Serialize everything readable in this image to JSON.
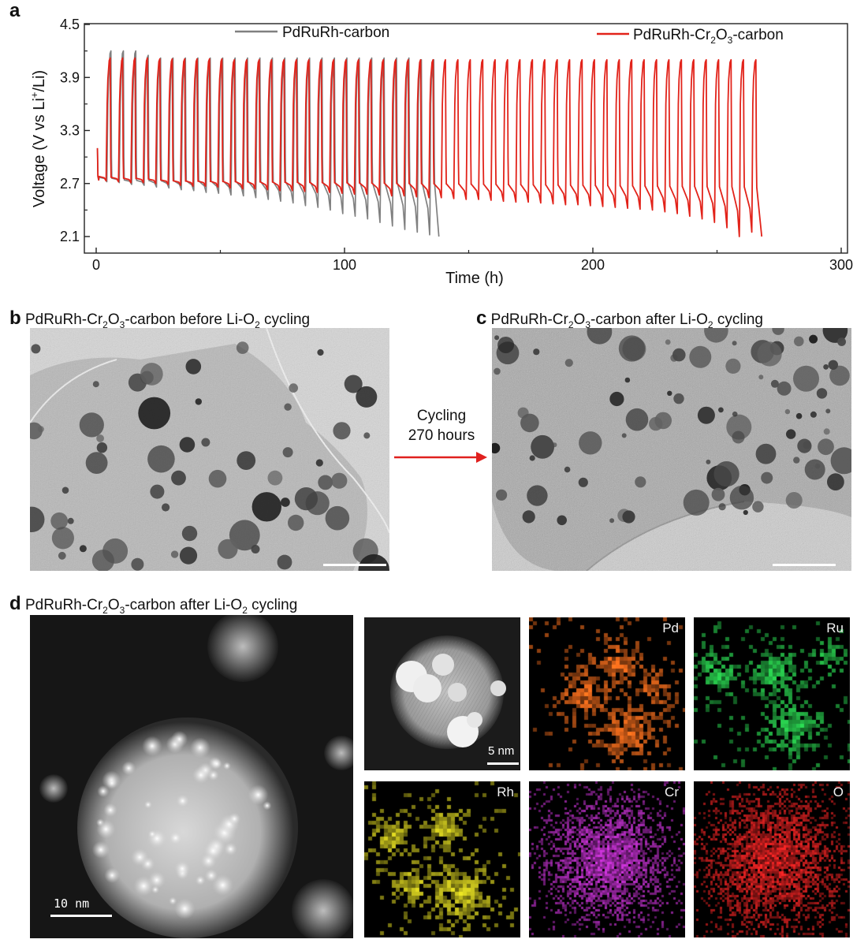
{
  "panels": {
    "a": {
      "letter": "a"
    },
    "b": {
      "letter": "b",
      "title_prefix": "PdRuRh-Cr",
      "s1": "2",
      "mid": "O",
      "s2": "3",
      "title_suffix": "-carbon before Li-O",
      "s3": "2",
      "title_end": " cycling"
    },
    "c": {
      "letter": "c",
      "title_prefix": "PdRuRh-Cr",
      "s1": "2",
      "mid": "O",
      "s2": "3",
      "title_suffix": "-carbon after Li-O",
      "s3": "2",
      "title_end": " cycling"
    },
    "d": {
      "letter": "d",
      "title_prefix": "PdRuRh-Cr",
      "s1": "2",
      "mid": "O",
      "s2": "3",
      "title_suffix": "-carbon after Li-O",
      "s3": "2",
      "title_end": " cycling"
    }
  },
  "arrow": {
    "line1": "Cycling",
    "line2": "270 hours",
    "color": "#e0201e"
  },
  "maps": {
    "haadf_scale": "5 nm",
    "large_scale": "10 nm",
    "elements": [
      {
        "label": "Pd",
        "color": "#e0651b"
      },
      {
        "label": "Ru",
        "color": "#27c24a"
      },
      {
        "label": "Rh",
        "color": "#c8c21e"
      },
      {
        "label": "Cr",
        "color": "#b62ec2"
      },
      {
        "label": "O",
        "color": "#d42020"
      }
    ]
  },
  "chart_data": {
    "type": "line",
    "xlabel": "Time (h)",
    "ylabel_main": "Voltage (V vs Li",
    "ylabel_sup": "+",
    "ylabel_end": "/Li)",
    "xlim": [
      0,
      300
    ],
    "ylim": [
      1.95,
      4.5
    ],
    "xticks": [
      0,
      100,
      200,
      300
    ],
    "yticks": [
      2.1,
      2.7,
      3.3,
      3.9,
      4.5
    ],
    "xtick_labels": [
      "0",
      "100",
      "200",
      "300"
    ],
    "ytick_labels": [
      "2.1",
      "2.7",
      "3.3",
      "3.9",
      "4.5"
    ],
    "grid": false,
    "legend": [
      {
        "name": "PdRuRh-carbon",
        "color": "#808080",
        "label_plain": "PdRuRh-carbon"
      },
      {
        "name": "PdRuRh-Cr2O3-carbon",
        "color": "#e2231a",
        "label_a": "PdRuRh-Cr",
        "sub1": "2",
        "label_b": "O",
        "sub2": "3",
        "label_c": "-carbon"
      }
    ],
    "series": [
      {
        "name": "PdRuRh-carbon",
        "color": "#808080",
        "cycle_period_h": 5,
        "end_h": 138,
        "discharge_end_V": [
          2.72,
          2.71,
          2.69,
          2.68,
          2.66,
          2.65,
          2.63,
          2.62,
          2.6,
          2.59,
          2.57,
          2.56,
          2.54,
          2.52,
          2.5,
          2.48,
          2.45,
          2.43,
          2.4,
          2.36,
          2.33,
          2.3,
          2.26,
          2.22,
          2.18,
          2.15,
          2.12,
          2.1
        ],
        "charge_top_V": [
          4.2,
          4.2,
          4.2,
          4.15,
          4.12,
          4.12,
          4.12,
          4.12,
          4.12,
          4.12,
          4.12,
          4.12,
          4.12,
          4.12,
          4.12,
          4.12,
          4.12,
          4.12,
          4.12,
          4.12,
          4.12,
          4.12,
          4.12,
          4.12,
          4.12,
          4.1,
          4.1
        ]
      },
      {
        "name": "PdRuRh-Cr2O3-carbon",
        "color": "#e2231a",
        "cycle_period_h": 5,
        "end_h": 268,
        "discharge_end_V": [
          2.73,
          2.72,
          2.71,
          2.71,
          2.7,
          2.69,
          2.68,
          2.67,
          2.67,
          2.66,
          2.65,
          2.64,
          2.64,
          2.63,
          2.62,
          2.62,
          2.61,
          2.6,
          2.6,
          2.59,
          2.58,
          2.58,
          2.57,
          2.56,
          2.56,
          2.55,
          2.54,
          2.54,
          2.53,
          2.52,
          2.52,
          2.51,
          2.5,
          2.49,
          2.49,
          2.48,
          2.47,
          2.46,
          2.46,
          2.45,
          2.44,
          2.43,
          2.42,
          2.41,
          2.4,
          2.38,
          2.36,
          2.33,
          2.3,
          2.26,
          2.2,
          2.1,
          2.15,
          2.1
        ],
        "charge_top_V": [
          4.12,
          4.12,
          4.12,
          4.12,
          4.11,
          4.11,
          4.11,
          4.11,
          4.11,
          4.11,
          4.1,
          4.1,
          4.1,
          4.1,
          4.1,
          4.1,
          4.1,
          4.1,
          4.1,
          4.1,
          4.1,
          4.1,
          4.1,
          4.1,
          4.1,
          4.1,
          4.1,
          4.1,
          4.1,
          4.1,
          4.1,
          4.1,
          4.1,
          4.1,
          4.1,
          4.1,
          4.1,
          4.1,
          4.1,
          4.1,
          4.1,
          4.1,
          4.1,
          4.1,
          4.1,
          4.1,
          4.1,
          4.1,
          4.1,
          4.1,
          4.1,
          4.1,
          4.1,
          4.1
        ]
      }
    ]
  }
}
